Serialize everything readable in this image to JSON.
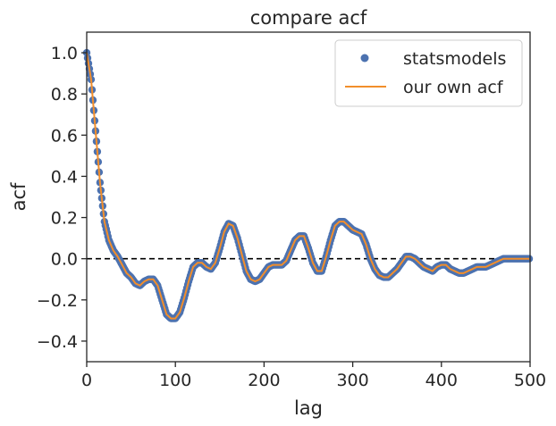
{
  "chart_data": {
    "type": "line",
    "title": "compare acf",
    "xlabel": "lag",
    "ylabel": "acf",
    "xlim": [
      0,
      500
    ],
    "ylim": [
      -0.5,
      1.1
    ],
    "xticks": [
      0,
      100,
      200,
      300,
      400,
      500
    ],
    "xtick_labels": [
      "0",
      "100",
      "200",
      "300",
      "400",
      "500"
    ],
    "yticks": [
      -0.4,
      -0.2,
      0.0,
      0.2,
      0.4,
      0.6,
      0.8,
      1.0
    ],
    "ytick_labels": [
      "−0.4",
      "−0.2",
      "0.0",
      "0.2",
      "0.4",
      "0.6",
      "0.8",
      "1.0"
    ],
    "grid": false,
    "legend_position": "top-right",
    "reference_line": {
      "y": 0.0,
      "style": "dashed",
      "color": "#000000"
    },
    "series": [
      {
        "name": "statsmodels",
        "style": "markers",
        "color": "#4c72b0"
      },
      {
        "name": "our own acf",
        "style": "line",
        "color": "#f28e2b"
      }
    ],
    "keypoints": [
      [
        0,
        1.0
      ],
      [
        5,
        0.87
      ],
      [
        10,
        0.62
      ],
      [
        15,
        0.37
      ],
      [
        20,
        0.18
      ],
      [
        25,
        0.09
      ],
      [
        30,
        0.04
      ],
      [
        35,
        0.01
      ],
      [
        40,
        -0.03
      ],
      [
        45,
        -0.07
      ],
      [
        50,
        -0.09
      ],
      [
        55,
        -0.12
      ],
      [
        60,
        -0.13
      ],
      [
        65,
        -0.11
      ],
      [
        70,
        -0.1
      ],
      [
        75,
        -0.1
      ],
      [
        80,
        -0.13
      ],
      [
        85,
        -0.2
      ],
      [
        90,
        -0.27
      ],
      [
        95,
        -0.29
      ],
      [
        100,
        -0.29
      ],
      [
        105,
        -0.26
      ],
      [
        110,
        -0.19
      ],
      [
        115,
        -0.11
      ],
      [
        120,
        -0.04
      ],
      [
        125,
        -0.02
      ],
      [
        130,
        -0.02
      ],
      [
        135,
        -0.04
      ],
      [
        140,
        -0.05
      ],
      [
        145,
        -0.02
      ],
      [
        150,
        0.05
      ],
      [
        155,
        0.13
      ],
      [
        160,
        0.17
      ],
      [
        165,
        0.16
      ],
      [
        170,
        0.1
      ],
      [
        175,
        0.02
      ],
      [
        180,
        -0.06
      ],
      [
        185,
        -0.1
      ],
      [
        190,
        -0.11
      ],
      [
        195,
        -0.1
      ],
      [
        200,
        -0.07
      ],
      [
        205,
        -0.04
      ],
      [
        210,
        -0.03
      ],
      [
        215,
        -0.03
      ],
      [
        220,
        -0.03
      ],
      [
        225,
        -0.01
      ],
      [
        230,
        0.04
      ],
      [
        235,
        0.09
      ],
      [
        240,
        0.11
      ],
      [
        245,
        0.11
      ],
      [
        250,
        0.05
      ],
      [
        255,
        -0.02
      ],
      [
        260,
        -0.06
      ],
      [
        265,
        -0.06
      ],
      [
        270,
        0.01
      ],
      [
        275,
        0.09
      ],
      [
        280,
        0.16
      ],
      [
        285,
        0.18
      ],
      [
        290,
        0.18
      ],
      [
        295,
        0.16
      ],
      [
        300,
        0.14
      ],
      [
        305,
        0.13
      ],
      [
        310,
        0.12
      ],
      [
        315,
        0.07
      ],
      [
        320,
        0.0
      ],
      [
        325,
        -0.05
      ],
      [
        330,
        -0.08
      ],
      [
        335,
        -0.09
      ],
      [
        340,
        -0.09
      ],
      [
        345,
        -0.07
      ],
      [
        350,
        -0.05
      ],
      [
        355,
        -0.02
      ],
      [
        360,
        0.01
      ],
      [
        365,
        0.01
      ],
      [
        370,
        0.0
      ],
      [
        375,
        -0.02
      ],
      [
        380,
        -0.04
      ],
      [
        385,
        -0.05
      ],
      [
        390,
        -0.06
      ],
      [
        395,
        -0.04
      ],
      [
        400,
        -0.03
      ],
      [
        405,
        -0.03
      ],
      [
        410,
        -0.05
      ],
      [
        415,
        -0.06
      ],
      [
        420,
        -0.07
      ],
      [
        425,
        -0.07
      ],
      [
        430,
        -0.06
      ],
      [
        435,
        -0.05
      ],
      [
        440,
        -0.04
      ],
      [
        445,
        -0.04
      ],
      [
        450,
        -0.04
      ],
      [
        455,
        -0.03
      ],
      [
        460,
        -0.02
      ],
      [
        465,
        -0.01
      ],
      [
        470,
        0.0
      ],
      [
        475,
        0.0
      ],
      [
        480,
        0.0
      ],
      [
        485,
        0.0
      ],
      [
        490,
        0.0
      ],
      [
        495,
        0.0
      ],
      [
        499,
        0.0
      ]
    ]
  }
}
